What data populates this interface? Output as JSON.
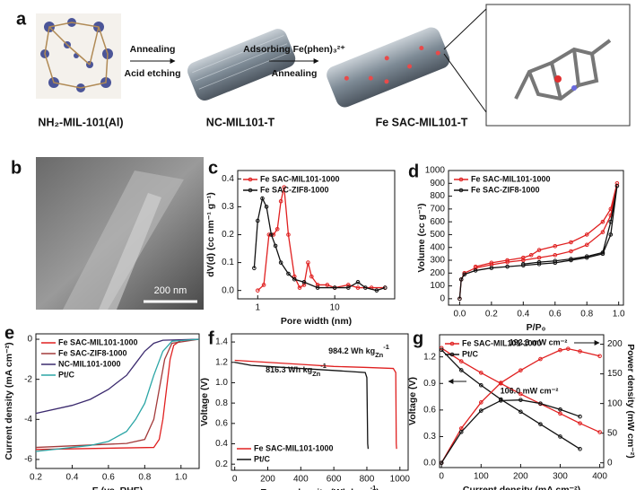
{
  "panel_labels": [
    "a",
    "b",
    "c",
    "d",
    "e",
    "f",
    "g"
  ],
  "schematic": {
    "step1": [
      "Annealing",
      "Acid etching"
    ],
    "step2": [
      "Adsorbing Fe(phen)₃²⁺",
      "Annealing"
    ],
    "materials": [
      "NH₂-MIL-101(Al)",
      "NC-MIL101-T",
      "Fe SAC-MIL101-T"
    ],
    "scale_bar": "200 nm"
  },
  "chart_data": [
    {
      "type": "line",
      "xscale": "log",
      "marker": true,
      "legend": "upper left",
      "xlabel": "Pore width (nm)",
      "ylabel": "dV(d) (cc nm⁻¹ g⁻¹)",
      "xlim": [
        0.55,
        60
      ],
      "xticks": [
        1,
        10
      ],
      "ylim": [
        -0.03,
        0.43
      ],
      "yticks": [
        {
          "value": 0,
          "label": "0.0"
        },
        0.1,
        0.2,
        0.3,
        0.4
      ],
      "series": [
        {
          "name": "Fe SAC-MIL101-1000",
          "color": "#e02020",
          "x": [
            1.0,
            1.2,
            1.4,
            1.6,
            1.8,
            2.0,
            2.2,
            2.5,
            3.0,
            3.5,
            4.0,
            4.5,
            5.0,
            6,
            8,
            10,
            15,
            20,
            30,
            45
          ],
          "values": [
            0.0,
            0.02,
            0.2,
            0.2,
            0.22,
            0.32,
            0.37,
            0.2,
            0.05,
            0.01,
            0.02,
            0.1,
            0.05,
            0.02,
            0.02,
            0.01,
            0.02,
            0.01,
            0.01,
            0.01
          ]
        },
        {
          "name": "Fe SAC-ZIF8-1000",
          "color": "#111111",
          "x": [
            0.9,
            1.0,
            1.15,
            1.3,
            1.5,
            1.7,
            2.0,
            2.5,
            3,
            4,
            6,
            10,
            15,
            20,
            25,
            35,
            45
          ],
          "values": [
            0.08,
            0.25,
            0.33,
            0.3,
            0.2,
            0.16,
            0.1,
            0.06,
            0.04,
            0.03,
            0.01,
            0.01,
            0.01,
            0.03,
            0.01,
            0.0,
            0.01
          ]
        }
      ]
    },
    {
      "type": "line",
      "marker": true,
      "legend": "upper left",
      "xlabel": "P/P₀",
      "ylabel": "Volume (cc g⁻¹)",
      "xlim": [
        -0.07,
        1.03
      ],
      "xticks": [
        {
          "value": 0,
          "label": "0.0"
        },
        0.2,
        0.4,
        0.6,
        0.8,
        {
          "value": 1,
          "label": "1.0"
        }
      ],
      "ylim": [
        -50,
        1000
      ],
      "yticks": [
        0,
        100,
        200,
        300,
        400,
        500,
        600,
        700,
        800,
        900,
        1000
      ],
      "series": [
        {
          "name": "Fe SAC-MIL101-1000",
          "color": "#e02020",
          "x": [
            0,
            0.01,
            0.03,
            0.1,
            0.2,
            0.3,
            0.4,
            0.5,
            0.6,
            0.7,
            0.8,
            0.9,
            0.95,
            0.99,
            0.95,
            0.9,
            0.8,
            0.7,
            0.6,
            0.5,
            0.45,
            0.4,
            0.3,
            0.2,
            0.1
          ],
          "values": [
            0,
            150,
            200,
            240,
            265,
            285,
            300,
            320,
            340,
            370,
            420,
            520,
            650,
            900,
            700,
            600,
            500,
            440,
            410,
            380,
            340,
            320,
            300,
            280,
            250
          ]
        },
        {
          "name": "Fe SAC-ZIF8-1000",
          "color": "#111111",
          "x": [
            0,
            0.01,
            0.03,
            0.1,
            0.2,
            0.3,
            0.4,
            0.5,
            0.6,
            0.7,
            0.8,
            0.9,
            0.95,
            0.99,
            0.95,
            0.9,
            0.8,
            0.7,
            0.6,
            0.5,
            0.4
          ],
          "values": [
            0,
            150,
            190,
            220,
            240,
            250,
            260,
            270,
            280,
            300,
            320,
            350,
            500,
            880,
            600,
            360,
            330,
            310,
            295,
            285,
            270
          ]
        }
      ]
    },
    {
      "type": "line",
      "marker": false,
      "legend": "upper left",
      "xlabel": "E (vs. RHE)",
      "ylabel": "Current density (mA cm⁻²)",
      "xlim": [
        0.2,
        1.1
      ],
      "xticks": [
        0.2,
        0.4,
        0.6,
        0.8,
        {
          "value": 1,
          "label": "1.0"
        }
      ],
      "ylim": [
        -6.45,
        0.27
      ],
      "yticks": [
        0,
        -2,
        -4,
        -6
      ],
      "series": [
        {
          "name": "Fe SAC-MIL101-1000",
          "color": "#e02020",
          "x": [
            0.2,
            0.85,
            0.88,
            0.9,
            0.92,
            0.94,
            0.96,
            1.0,
            1.1
          ],
          "values": [
            -5.5,
            -5.4,
            -5.0,
            -4,
            -2.5,
            -1.0,
            -0.3,
            -0.05,
            0
          ]
        },
        {
          "name": "Fe SAC-ZIF8-1000",
          "color": "#a33a3a",
          "x": [
            0.2,
            0.7,
            0.8,
            0.85,
            0.88,
            0.91,
            0.95,
            1.1
          ],
          "values": [
            -5.4,
            -5.2,
            -5.0,
            -4,
            -2.5,
            -1,
            -0.2,
            0
          ]
        },
        {
          "name": "NC-MIL101-1000",
          "color": "#3b2a6e",
          "x": [
            0.2,
            0.4,
            0.5,
            0.6,
            0.7,
            0.75,
            0.8,
            0.85,
            0.9,
            1.1
          ],
          "values": [
            -3.7,
            -3.3,
            -3.0,
            -2.5,
            -1.8,
            -1.2,
            -0.6,
            -0.2,
            -0.05,
            0
          ]
        },
        {
          "name": "Pt/C",
          "color": "#2aa5a5",
          "x": [
            0.2,
            0.5,
            0.6,
            0.7,
            0.75,
            0.8,
            0.85,
            0.9,
            0.95,
            1.1
          ],
          "values": [
            -5.6,
            -5.3,
            -5.1,
            -4.6,
            -4.0,
            -3.2,
            -1.8,
            -0.6,
            -0.1,
            0
          ]
        }
      ]
    },
    {
      "type": "line",
      "marker": false,
      "legend": "lower left",
      "xlabel": [
        {
          "t": "Energy density (Wh kg"
        },
        {
          "sub": "Zn"
        },
        {
          "sup": "-1"
        },
        {
          "t": ")"
        }
      ],
      "ylabel": "Voltage (V)",
      "xlim": [
        -20,
        1050
      ],
      "xticks": [
        0,
        200,
        400,
        600,
        800,
        1000
      ],
      "ylim": [
        0.14,
        1.48
      ],
      "yticks": [
        0.2,
        0.4,
        0.6,
        0.8,
        {
          "value": 1,
          "label": "1.0"
        },
        1.2,
        1.4
      ],
      "annotations": [
        [
          {
            "t": "984.2 Wh kg"
          },
          {
            "sub": "Zn"
          },
          {
            "sup": "-1"
          }
        ],
        [
          {
            "t": "816.3 Wh kg"
          },
          {
            "sub": "Zn"
          },
          {
            "sup": "-1"
          }
        ]
      ],
      "series": [
        {
          "name": "Fe SAC-MIL101-1000",
          "color": "#e02020",
          "x": [
            0,
            200,
            400,
            600,
            800,
            960,
            975,
            978,
            980
          ],
          "values": [
            1.22,
            1.2,
            1.18,
            1.16,
            1.15,
            1.14,
            1.1,
            0.4,
            0.35
          ]
        },
        {
          "name": "Pt/C",
          "color": "#111111",
          "x": [
            0,
            100,
            200,
            300,
            400,
            500,
            600,
            700,
            790,
            800,
            805,
            808
          ],
          "values": [
            1.2,
            1.17,
            1.16,
            1.15,
            1.14,
            1.13,
            1.12,
            1.11,
            1.1,
            1.05,
            0.4,
            0.35
          ]
        }
      ]
    },
    {
      "type": "line",
      "marker": true,
      "legend": "upper left",
      "xlabel": "Current density (mA cm⁻²)",
      "ylabel": "Voltage (V)",
      "y2label": "Power density (mW cm⁻²)",
      "xlim": [
        -5,
        410
      ],
      "xticks": [
        0,
        100,
        200,
        300,
        400
      ],
      "ylim": [
        -0.05,
        1.45
      ],
      "yticks": [
        {
          "value": 0,
          "label": "0.0"
        },
        0.3,
        0.6,
        0.9,
        1.2
      ],
      "y2lim": [
        -8,
        216
      ],
      "y2ticks": [
        0,
        50,
        100,
        150,
        200
      ],
      "annotations": [
        "192.3 mW cm⁻²",
        "106.0 mW cm⁻²"
      ],
      "series": [
        {
          "name": "Fe SAC-MIL101-1000",
          "color": "#e02020",
          "x": [
            0,
            50,
            100,
            150,
            200,
            250,
            300,
            350,
            400
          ],
          "values": [
            1.3,
            1.15,
            1.02,
            0.9,
            0.78,
            0.67,
            0.56,
            0.45,
            0.35
          ]
        },
        {
          "name": "Pt/C",
          "color": "#111111",
          "x": [
            0,
            50,
            100,
            150,
            200,
            250,
            300,
            350
          ],
          "values": [
            1.28,
            1.05,
            0.88,
            0.72,
            0.58,
            0.44,
            0.3,
            0.16
          ]
        },
        {
          "color": "#e02020",
          "axis": "y2",
          "x": [
            0,
            50,
            100,
            150,
            200,
            250,
            300,
            320,
            350,
            400
          ],
          "values": [
            0,
            58,
            102,
            135,
            156,
            175,
            190,
            192.3,
            188,
            180
          ]
        },
        {
          "color": "#111111",
          "axis": "y2",
          "x": [
            0,
            50,
            100,
            150,
            200,
            250,
            300,
            350
          ],
          "values": [
            0,
            52,
            88,
            105,
            106,
            100,
            90,
            78
          ]
        }
      ]
    }
  ]
}
